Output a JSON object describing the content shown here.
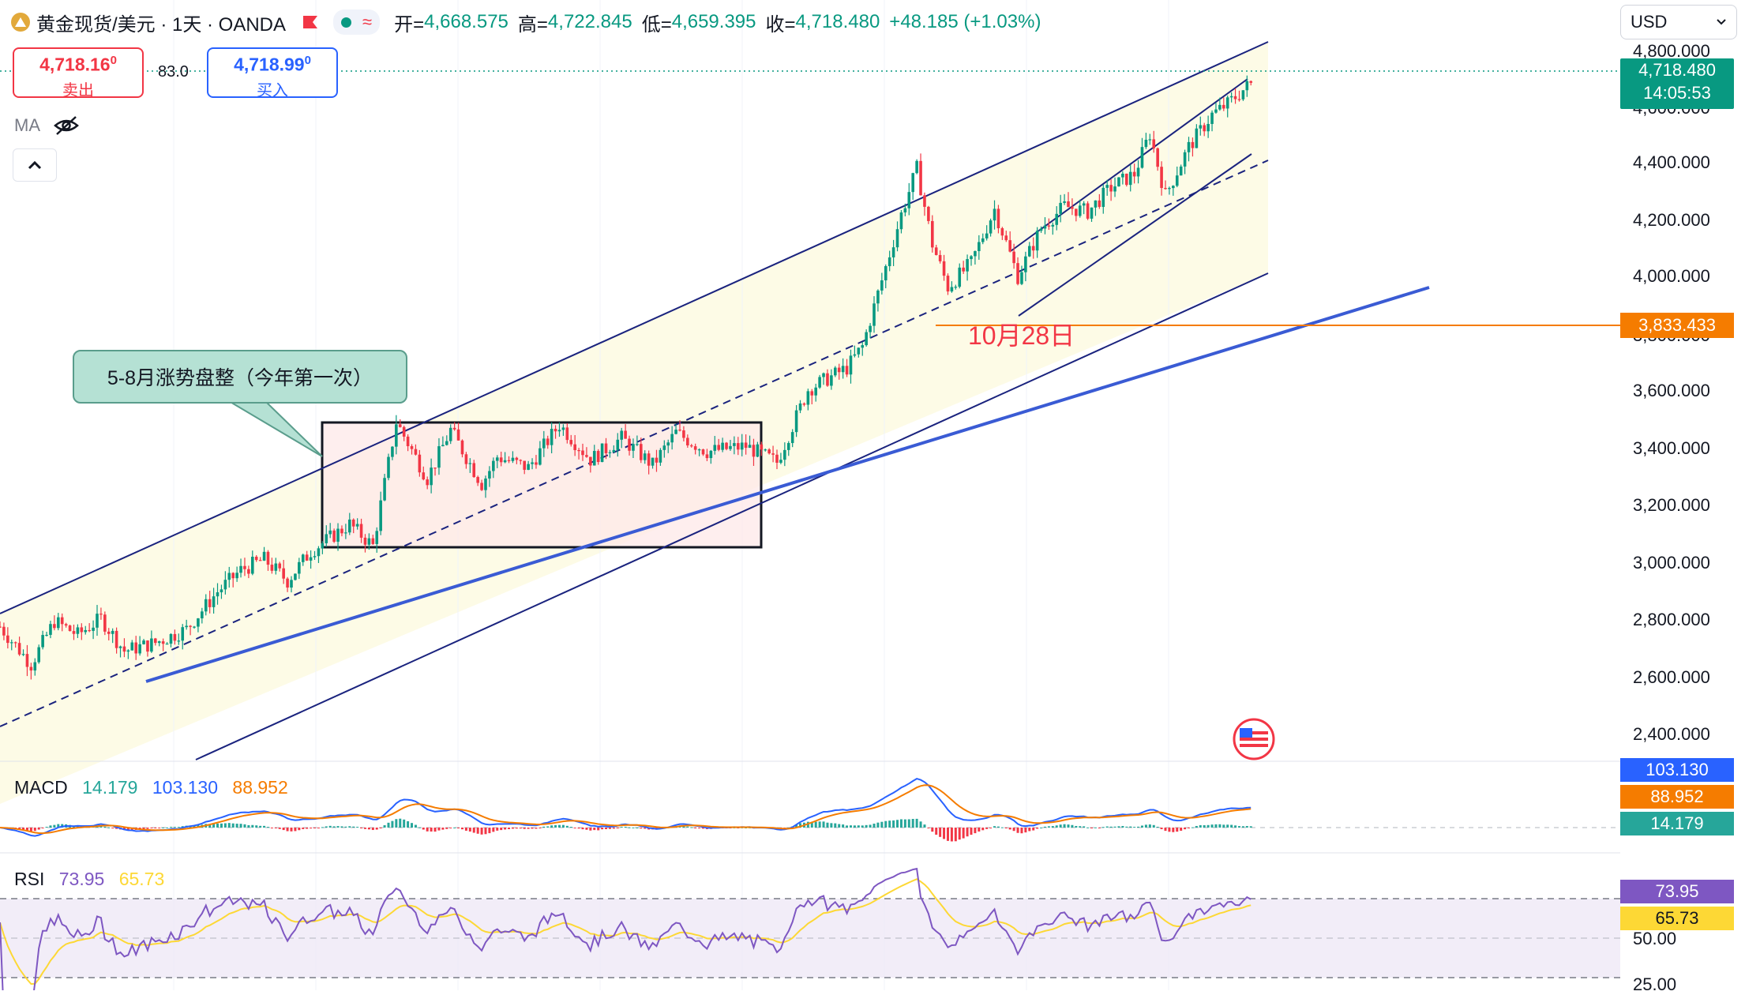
{
  "header": {
    "symbol": "黄金现货/美元 · 1天 · OANDA",
    "ohlc": [
      {
        "key": "开=",
        "value": "4,668.575"
      },
      {
        "key": "高=",
        "value": "4,722.845"
      },
      {
        "key": "低=",
        "value": "4,659.395"
      },
      {
        "key": "收=",
        "value": "4,718.480"
      }
    ],
    "change": "+48.185 (+1.03%)"
  },
  "trade": {
    "sell_price": "4,718.16",
    "sell_sup": "0",
    "sell_label": "卖出",
    "spread": "83.0",
    "buy_price": "4,718.99",
    "buy_sup": "0",
    "buy_label": "买入"
  },
  "ma_label": "MA",
  "currency": "USD",
  "price_axis": {
    "labels": [
      "4,800.000",
      "4,600.000",
      "4,400.000",
      "4,200.000",
      "4,000.000",
      "3,800.000",
      "3,600.000",
      "3,400.000",
      "3,200.000",
      "3,000.000",
      "2,800.000",
      "2,600.000",
      "2,400.000"
    ]
  },
  "last_price": {
    "value": "4,718.480",
    "countdown": "14:05:53",
    "color": "#089981"
  },
  "hline": {
    "value": "3,833.433",
    "color": "#f57c00"
  },
  "annotations": {
    "callout": "5-8月涨势盘整（今年第一次）",
    "date_label": "10月28日"
  },
  "macd": {
    "name": "MACD",
    "hist": "14.179",
    "macd": "103.130",
    "signal": "88.952",
    "hist_color": "#26a69a",
    "macd_color": "#2962ff",
    "signal_color": "#f57c00"
  },
  "rsi": {
    "name": "RSI",
    "value": "73.95",
    "ma": "65.73",
    "axis_labels": [
      "50.00",
      "25.00"
    ],
    "line_color": "#7e57c2",
    "ma_color": "#fdd835"
  },
  "chart_data": {
    "type": "candlestick",
    "y_range": [
      2300,
      4850
    ],
    "last_close": 4718.48,
    "path": [
      [
        0,
        2700
      ],
      [
        8,
        2560
      ],
      [
        14,
        2720
      ],
      [
        20,
        2670
      ],
      [
        26,
        2730
      ],
      [
        32,
        2610
      ],
      [
        40,
        2640
      ],
      [
        48,
        2690
      ],
      [
        56,
        2830
      ],
      [
        62,
        2910
      ],
      [
        68,
        2950
      ],
      [
        74,
        2870
      ],
      [
        80,
        2980
      ],
      [
        90,
        3080
      ],
      [
        96,
        3000
      ],
      [
        102,
        3460
      ],
      [
        110,
        3250
      ],
      [
        116,
        3430
      ],
      [
        124,
        3230
      ],
      [
        128,
        3330
      ],
      [
        136,
        3290
      ],
      [
        144,
        3450
      ],
      [
        152,
        3320
      ],
      [
        160,
        3400
      ],
      [
        168,
        3300
      ],
      [
        174,
        3420
      ],
      [
        182,
        3350
      ],
      [
        192,
        3370
      ],
      [
        200,
        3310
      ],
      [
        208,
        3580
      ],
      [
        218,
        3660
      ],
      [
        222,
        3740
      ],
      [
        232,
        4230
      ],
      [
        236,
        4400
      ],
      [
        240,
        4120
      ],
      [
        244,
        3960
      ],
      [
        250,
        4050
      ],
      [
        256,
        4250
      ],
      [
        262,
        4000
      ],
      [
        268,
        4180
      ],
      [
        274,
        4260
      ],
      [
        280,
        4240
      ],
      [
        286,
        4330
      ],
      [
        292,
        4380
      ],
      [
        296,
        4530
      ],
      [
        300,
        4300
      ],
      [
        306,
        4480
      ],
      [
        312,
        4600
      ],
      [
        316,
        4640
      ],
      [
        322,
        4718
      ]
    ]
  }
}
